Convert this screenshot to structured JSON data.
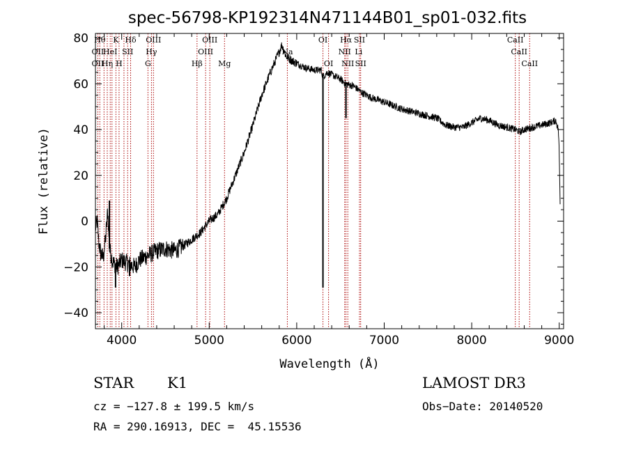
{
  "chart_data": {
    "type": "line",
    "title": "spec-56798-KP192314N471144B01_sp01-032.fits",
    "xlabel": "Wavelength (Å)",
    "ylabel": "Flux (relative)",
    "xlim": [
      3700,
      9050
    ],
    "ylim": [
      -47,
      82
    ],
    "x_ticks": [
      4000,
      5000,
      6000,
      7000,
      8000,
      9000
    ],
    "y_ticks": [
      -40,
      -20,
      0,
      20,
      40,
      60,
      80
    ],
    "series": [
      {
        "name": "spectrum",
        "color": "#000000",
        "points": [
          [
            3700,
            -3
          ],
          [
            3720,
            0
          ],
          [
            3740,
            -10
          ],
          [
            3760,
            -14
          ],
          [
            3790,
            -16
          ],
          [
            3820,
            -6
          ],
          [
            3840,
            5
          ],
          [
            3860,
            -12
          ],
          [
            3900,
            -18
          ],
          [
            3950,
            -20
          ],
          [
            4000,
            -17
          ],
          [
            4050,
            -18
          ],
          [
            4100,
            -19
          ],
          [
            4150,
            -20
          ],
          [
            4200,
            -17
          ],
          [
            4300,
            -15
          ],
          [
            4400,
            -13
          ],
          [
            4500,
            -12
          ],
          [
            4600,
            -13
          ],
          [
            4700,
            -11
          ],
          [
            4800,
            -8
          ],
          [
            4900,
            -5
          ],
          [
            5000,
            0
          ],
          [
            5100,
            3
          ],
          [
            5200,
            10
          ],
          [
            5300,
            20
          ],
          [
            5400,
            30
          ],
          [
            5500,
            42
          ],
          [
            5600,
            55
          ],
          [
            5700,
            65
          ],
          [
            5800,
            74
          ],
          [
            5830,
            77
          ],
          [
            5880,
            72
          ],
          [
            5950,
            70
          ],
          [
            6000,
            69
          ],
          [
            6100,
            67
          ],
          [
            6200,
            66
          ],
          [
            6280,
            66
          ],
          [
            6300,
            63
          ],
          [
            6350,
            65
          ],
          [
            6400,
            64
          ],
          [
            6500,
            62
          ],
          [
            6560,
            60
          ],
          [
            6650,
            59
          ],
          [
            6750,
            56
          ],
          [
            6850,
            54
          ],
          [
            7000,
            52
          ],
          [
            7200,
            49
          ],
          [
            7400,
            47
          ],
          [
            7600,
            45
          ],
          [
            7700,
            42
          ],
          [
            7800,
            41
          ],
          [
            7900,
            41
          ],
          [
            8000,
            43
          ],
          [
            8100,
            45
          ],
          [
            8200,
            44
          ],
          [
            8300,
            42
          ],
          [
            8400,
            41
          ],
          [
            8500,
            40
          ],
          [
            8550,
            39
          ],
          [
            8600,
            40
          ],
          [
            8700,
            41
          ],
          [
            8800,
            42
          ],
          [
            8900,
            43
          ],
          [
            8960,
            44
          ],
          [
            8990,
            40
          ],
          [
            9000,
            30
          ],
          [
            9010,
            8
          ]
        ],
        "spikes": [
          {
            "x": 6300,
            "to": -29
          },
          {
            "x": 6563,
            "to": 45
          },
          {
            "x": 3860,
            "to": 9
          },
          {
            "x": 3930,
            "to": -29
          },
          {
            "x": 4090,
            "to": -24
          }
        ]
      }
    ],
    "reference_lines": {
      "color": "#aa0000",
      "wavelengths": [
        3727,
        3750,
        3798,
        3835,
        3869,
        3889,
        3934,
        3970,
        4026,
        4068,
        4102,
        4300,
        4340,
        4363,
        4861,
        4959,
        5007,
        5175,
        5893,
        6300,
        6364,
        6548,
        6563,
        6584,
        6717,
        6731,
        8498,
        8542,
        8662
      ],
      "labels": [
        {
          "text": "Hθ",
          "x": 3750,
          "row": 0
        },
        {
          "text": "K",
          "x": 3934,
          "row": 0
        },
        {
          "text": "Hδ",
          "x": 4102,
          "row": 0
        },
        {
          "text": "OIII",
          "x": 4363,
          "row": 0
        },
        {
          "text": "OIII",
          "x": 5007,
          "row": 0
        },
        {
          "text": "OI",
          "x": 6300,
          "row": 0
        },
        {
          "text": "Hα",
          "x": 6563,
          "row": 0
        },
        {
          "text": "SII",
          "x": 6717,
          "row": 0
        },
        {
          "text": "CaII",
          "x": 8498,
          "row": 0
        },
        {
          "text": "OII",
          "x": 3727,
          "row": 1
        },
        {
          "text": "HeI",
          "x": 3869,
          "row": 1
        },
        {
          "text": "SII",
          "x": 4068,
          "row": 1
        },
        {
          "text": "Hγ",
          "x": 4340,
          "row": 1
        },
        {
          "text": "OIII",
          "x": 4959,
          "row": 1
        },
        {
          "text": "Na",
          "x": 5893,
          "row": 1
        },
        {
          "text": "NII",
          "x": 6548,
          "row": 1
        },
        {
          "text": "Li",
          "x": 6708,
          "row": 1
        },
        {
          "text": "CaII",
          "x": 8542,
          "row": 1
        },
        {
          "text": "OII",
          "x": 3727,
          "row": 2
        },
        {
          "text": "Hη",
          "x": 3835,
          "row": 2
        },
        {
          "text": "H",
          "x": 3970,
          "row": 2
        },
        {
          "text": "G",
          "x": 4300,
          "row": 2
        },
        {
          "text": "Hβ",
          "x": 4861,
          "row": 2
        },
        {
          "text": "Mg",
          "x": 5175,
          "row": 2
        },
        {
          "text": "OI",
          "x": 6364,
          "row": 2
        },
        {
          "text": "NII",
          "x": 6584,
          "row": 2
        },
        {
          "text": "SII",
          "x": 6731,
          "row": 2
        },
        {
          "text": "CaII",
          "x": 8662,
          "row": 2
        }
      ]
    }
  },
  "info": {
    "object_class": "STAR",
    "subclass": "K1",
    "survey": "LAMOST DR3",
    "redshift_text": "cz = −127.8 ± 199.5 km/s",
    "obs_date": "Obs−Date: 20140520",
    "coords": "RA = 290.16913, DEC =  45.15536"
  }
}
